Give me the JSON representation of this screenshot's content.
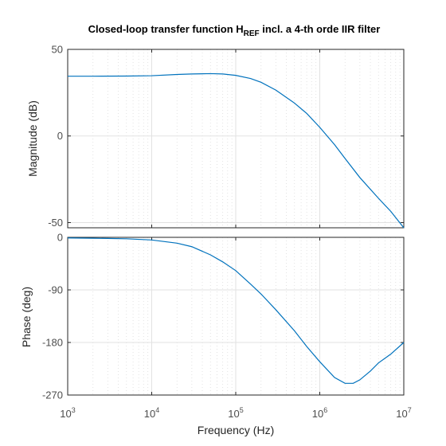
{
  "chart_data": {
    "type": "line",
    "title": {
      "prefix": "Closed-loop transfer function H",
      "subscript": "REF",
      "suffix": " incl. a 4-th orde IIR filter"
    },
    "xlabel": "Frequency  (Hz)",
    "x_scale": "log",
    "xlim": [
      1000,
      10000000
    ],
    "x_ticks": [
      {
        "base": "10",
        "exp": "3"
      },
      {
        "base": "10",
        "exp": "4"
      },
      {
        "base": "10",
        "exp": "5"
      },
      {
        "base": "10",
        "exp": "6"
      },
      {
        "base": "10",
        "exp": "7"
      }
    ],
    "x_tick_values": [
      1000,
      10000,
      100000,
      1000000,
      10000000
    ],
    "grid": true,
    "line_color": "#0072bd",
    "panels": [
      {
        "name": "magnitude",
        "ylabel": "Magnitude (dB)",
        "ylim": [
          -53,
          50
        ],
        "y_ticks": [
          "50",
          "0",
          "-50"
        ],
        "y_tick_values": [
          50,
          0,
          -50
        ],
        "series": [
          {
            "x": [
              1000,
              2000,
              5000,
              10000,
              20000,
              30000,
              50000,
              70000,
              100000,
              150000,
              200000,
              300000,
              500000,
              700000,
              1000000,
              1500000,
              2000000,
              3000000,
              5000000,
              7000000,
              10000000
            ],
            "y": [
              34.5,
              34.5,
              34.6,
              34.8,
              35.5,
              35.8,
              36.0,
              35.8,
              35.0,
              33.2,
              31.0,
              26.5,
              19.0,
              13.0,
              5.0,
              -5.0,
              -13.0,
              -24.0,
              -36.0,
              -43.5,
              -53.0
            ]
          }
        ]
      },
      {
        "name": "phase",
        "ylabel": "Phase (deg)",
        "ylim": [
          -270,
          0
        ],
        "y_ticks": [
          "0",
          "-90",
          "-180",
          "-270"
        ],
        "y_tick_values": [
          0,
          -90,
          -180,
          -270
        ],
        "series": [
          {
            "x": [
              1000,
              2000,
              5000,
              10000,
              20000,
              30000,
              50000,
              70000,
              100000,
              150000,
              200000,
              300000,
              500000,
              700000,
              1000000,
              1500000,
              2000000,
              2500000,
              3000000,
              4000000,
              5000000,
              7000000,
              10000000
            ],
            "y": [
              -1,
              -1.5,
              -2.5,
              -4.5,
              -10,
              -16,
              -30,
              -42,
              -57,
              -80,
              -97,
              -124,
              -160,
              -187,
              -213,
              -240,
              -250,
              -250,
              -244,
              -229,
              -215,
              -200,
              -180
            ]
          }
        ]
      }
    ]
  }
}
